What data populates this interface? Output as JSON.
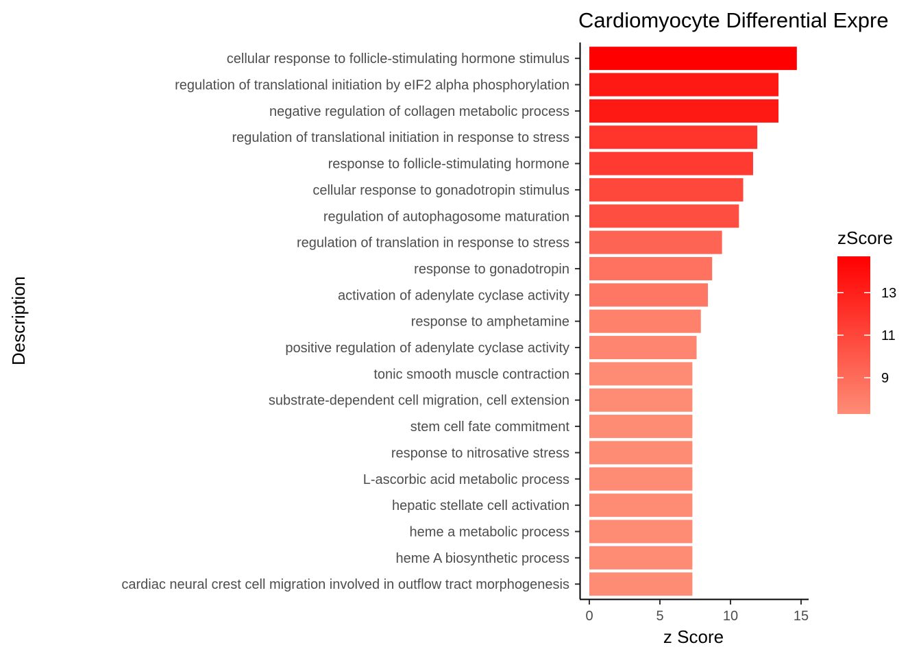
{
  "chart_data": {
    "type": "bar",
    "orientation": "horizontal",
    "title": "Cardiomyocyte Differential Expre",
    "xlabel": "z Score",
    "ylabel": "Description",
    "xlim": [
      0,
      15
    ],
    "x_ticks": [
      0,
      5,
      10,
      15
    ],
    "grid": false,
    "categories": [
      "cellular response to follicle-stimulating hormone stimulus",
      "regulation of translational initiation by eIF2 alpha phosphorylation",
      "negative regulation of collagen metabolic process",
      "regulation of translational initiation in response to stress",
      "response to follicle-stimulating hormone",
      "cellular response to gonadotropin stimulus",
      "regulation of autophagosome maturation",
      "regulation of translation in response to stress",
      "response to gonadotropin",
      "activation of adenylate cyclase activity",
      "response to amphetamine",
      "positive regulation of adenylate cyclase activity",
      "tonic smooth muscle contraction",
      "substrate-dependent cell migration, cell extension",
      "stem cell fate commitment",
      "response to nitrosative stress",
      "L-ascorbic acid metabolic process",
      "hepatic stellate cell activation",
      "heme a metabolic process",
      "heme A biosynthetic process",
      "cardiac neural crest cell migration involved in outflow tract morphogenesis"
    ],
    "values": [
      14.7,
      13.4,
      13.4,
      11.9,
      11.6,
      10.9,
      10.6,
      9.4,
      8.7,
      8.4,
      7.9,
      7.6,
      7.3,
      7.3,
      7.3,
      7.3,
      7.3,
      7.3,
      7.3,
      7.3,
      7.3
    ],
    "legend": {
      "title": "zScore",
      "position": "right",
      "ticks": [
        13,
        11,
        9
      ],
      "range": [
        7.3,
        14.7
      ],
      "color_low": "#fe8c75",
      "color_high": "#ff0000"
    }
  }
}
